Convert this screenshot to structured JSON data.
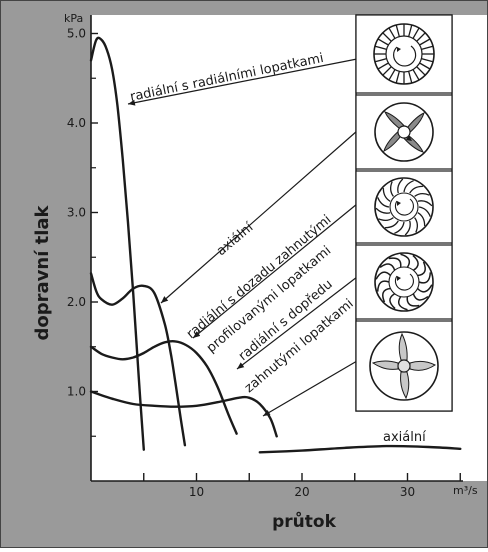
{
  "chart_data": {
    "type": "line",
    "xlabel": "průtok",
    "ylabel": "dopravní tlak",
    "x_unit": "m³/s",
    "y_unit": "kPa",
    "xlim": [
      0,
      35
    ],
    "ylim": [
      0,
      5.3
    ],
    "x_ticks": [
      10,
      20,
      30
    ],
    "y_ticks": [
      1.0,
      2.0,
      3.0,
      4.0,
      5.0
    ],
    "grid": false,
    "series": [
      {
        "name": "radiální s radiálními lopatkami",
        "x": [
          0,
          0.5,
          1,
          1.5,
          2,
          2.5,
          3,
          3.5,
          4,
          4.5,
          5
        ],
        "y": [
          4.7,
          4.93,
          4.93,
          4.82,
          4.6,
          4.2,
          3.6,
          2.9,
          2.1,
          1.2,
          0.35
        ]
      },
      {
        "name": "radiální s dozadu zahnutými profilovanými lopatkami",
        "x": [
          0,
          0.5,
          1,
          2,
          3,
          4,
          5,
          6,
          7,
          7.6,
          8,
          8.5,
          8.9
        ],
        "y": [
          2.32,
          2.12,
          2.03,
          1.97,
          2.04,
          2.15,
          2.18,
          2.1,
          1.75,
          1.4,
          1.1,
          0.7,
          0.4
        ]
      },
      {
        "name": "radiální s dopředu zahnutými lopatkami",
        "x": [
          0,
          1,
          2,
          3,
          4,
          5,
          6,
          7,
          8,
          9,
          10,
          11,
          12,
          13,
          13.8
        ],
        "y": [
          1.5,
          1.42,
          1.38,
          1.36,
          1.38,
          1.43,
          1.5,
          1.55,
          1.56,
          1.52,
          1.43,
          1.28,
          1.05,
          0.75,
          0.53
        ]
      },
      {
        "name": "axiální",
        "x": [
          0,
          2,
          4,
          6,
          8,
          10,
          12,
          14,
          15,
          16,
          17,
          17.6
        ],
        "y": [
          1.0,
          0.92,
          0.86,
          0.84,
          0.83,
          0.84,
          0.88,
          0.93,
          0.93,
          0.86,
          0.7,
          0.5
        ]
      },
      {
        "name": "axiální",
        "x": [
          16,
          20,
          24,
          28,
          32,
          35
        ],
        "y": [
          0.32,
          0.34,
          0.37,
          0.39,
          0.38,
          0.36
        ]
      }
    ],
    "annotations": [
      "radiální s radiálními lopatkami",
      "axiální",
      "radiální s dozadu zahnutými",
      "profilovanými lopatkami",
      "radiální s dopředu",
      "zahnutými lopatkami",
      "axiální"
    ]
  },
  "impeller_icons": [
    {
      "name": "radial-blades-impeller-icon"
    },
    {
      "name": "backward-curved-profiled-impeller-icon"
    },
    {
      "name": "backward-curved-impeller-icon"
    },
    {
      "name": "forward-curved-impeller-icon"
    },
    {
      "name": "axial-propeller-icon"
    }
  ],
  "colors": {
    "frame": "#9a9a9a",
    "plot": "#ffffff",
    "ink": "#1b1b1b"
  }
}
